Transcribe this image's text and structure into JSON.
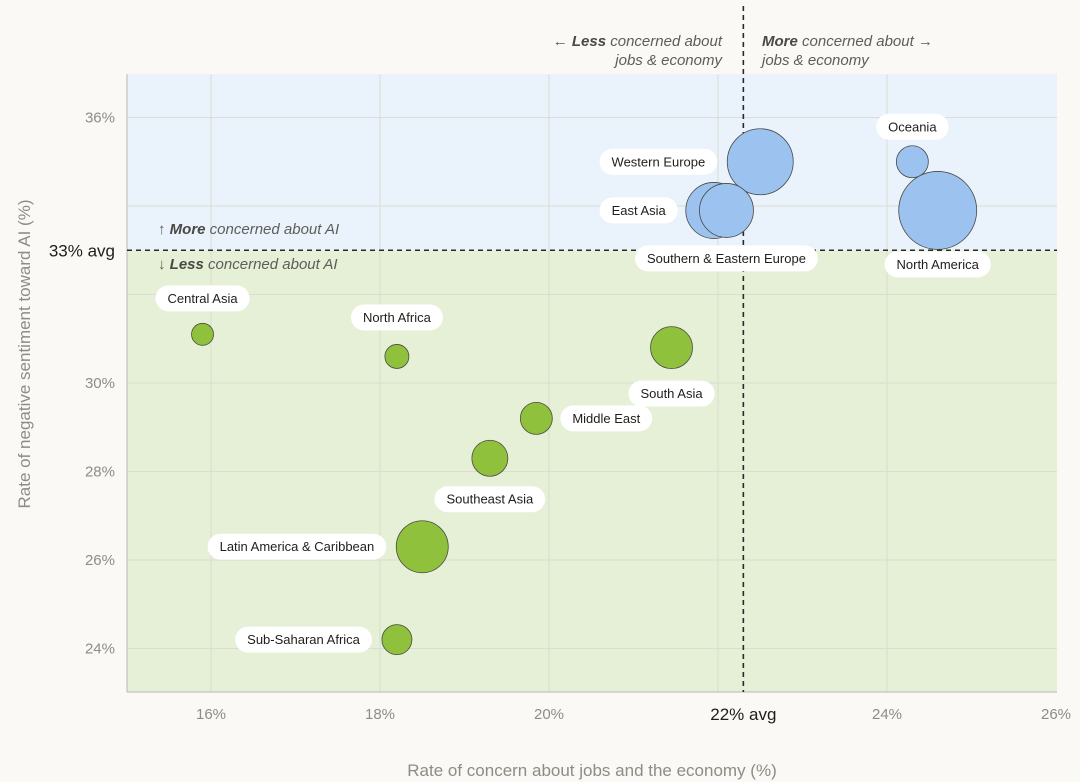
{
  "chart_data": {
    "type": "scatter",
    "title": "",
    "xlabel": "Rate of concern about jobs and the economy (%)",
    "ylabel": "Rate of negative sentiment toward AI (%)",
    "xlim": [
      15,
      26
    ],
    "ylim": [
      23,
      37
    ],
    "x_ticks": [
      16,
      18,
      20,
      24,
      26
    ],
    "x_tick_labels": [
      "16%",
      "18%",
      "20%",
      "24%",
      "26%"
    ],
    "y_ticks": [
      24,
      26,
      28,
      30,
      36
    ],
    "y_tick_labels": [
      "24%",
      "26%",
      "28%",
      "30%",
      "36%"
    ],
    "x_avg": 22.3,
    "y_avg": 33,
    "x_avg_label": "22% avg",
    "y_avg_label": "33% avg",
    "gridlines": true,
    "colors": {
      "background": "#faf9f5",
      "high_region": "#eaf3fc",
      "low_region": "#e5f0d6",
      "high_point": "#9cc2f0",
      "low_point": "#8fc13c",
      "grid": "#dcdcd2",
      "point_stroke": "#4a4945"
    },
    "annotations": {
      "x_less_bold": "Less",
      "x_less_rest": " concerned about",
      "x_less_line2": "jobs & economy",
      "x_more_bold": "More",
      "x_more_rest": " concerned about",
      "x_more_line2": "jobs & economy",
      "y_more_bold": "More",
      "y_more_rest": " concerned about AI",
      "y_less_bold": "Less",
      "y_less_rest": " concerned about AI"
    },
    "points": [
      {
        "region": "Western Europe",
        "x": 22.5,
        "y": 35.0,
        "size": 33,
        "group": "high"
      },
      {
        "region": "East Asia",
        "x": 21.95,
        "y": 33.9,
        "size": 28,
        "group": "high"
      },
      {
        "region": "Southern & Eastern Europe",
        "x": 22.1,
        "y": 33.9,
        "size": 27,
        "group": "high"
      },
      {
        "region": "Oceania",
        "x": 24.3,
        "y": 35.0,
        "size": 16,
        "group": "high"
      },
      {
        "region": "North America",
        "x": 24.6,
        "y": 33.9,
        "size": 39,
        "group": "high"
      },
      {
        "region": "Central Asia",
        "x": 15.9,
        "y": 31.1,
        "size": 11,
        "group": "low"
      },
      {
        "region": "North Africa",
        "x": 18.2,
        "y": 30.6,
        "size": 12,
        "group": "low"
      },
      {
        "region": "South Asia",
        "x": 21.45,
        "y": 30.8,
        "size": 21,
        "group": "low"
      },
      {
        "region": "Middle East",
        "x": 19.85,
        "y": 29.2,
        "size": 16,
        "group": "low"
      },
      {
        "region": "Southeast Asia",
        "x": 19.3,
        "y": 28.3,
        "size": 18,
        "group": "low"
      },
      {
        "region": "Latin America & Caribbean",
        "x": 18.5,
        "y": 26.3,
        "size": 26,
        "group": "low"
      },
      {
        "region": "Sub-Saharan Africa",
        "x": 18.2,
        "y": 24.2,
        "size": 15,
        "group": "low"
      }
    ]
  }
}
